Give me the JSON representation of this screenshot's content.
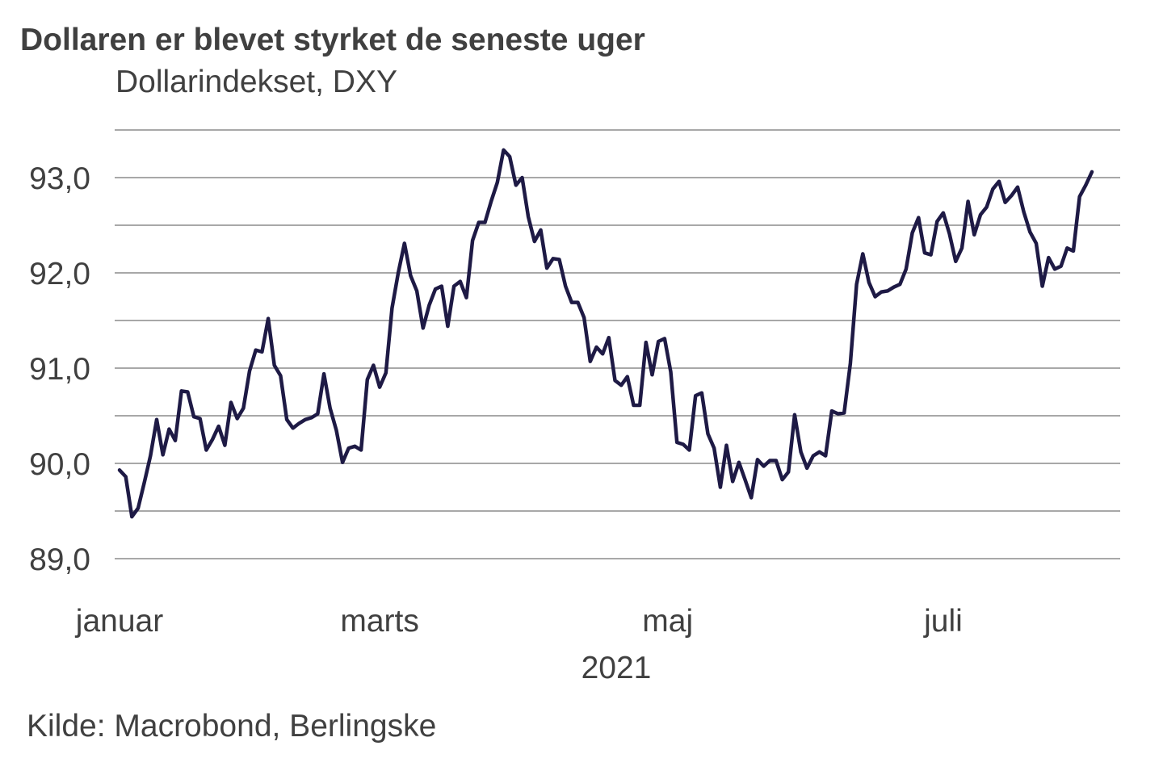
{
  "title": "Dollaren er blevet styrket de seneste uger",
  "subtitle": "Dollarindekset, DXY",
  "source": "Kilde: Macrobond, Berlingske",
  "colors": {
    "line": "#1e1a45",
    "grid": "#8c8c8c",
    "text": "#404040"
  },
  "chart_data": {
    "type": "line",
    "title": "Dollaren er blevet styrket de seneste uger",
    "subtitle": "Dollarindekset, DXY",
    "xlabel": "2021",
    "ylabel": "",
    "ylim": [
      89.0,
      93.5
    ],
    "grid": true,
    "y_ticks": [
      {
        "value": 89.0,
        "label": "89,0"
      },
      {
        "value": 90.0,
        "label": "90,0"
      },
      {
        "value": 91.0,
        "label": "91,0"
      },
      {
        "value": 92.0,
        "label": "92,0"
      },
      {
        "value": 93.0,
        "label": "93,0"
      }
    ],
    "gridlines": [
      89.0,
      89.5,
      90.0,
      90.5,
      91.0,
      91.5,
      92.0,
      92.5,
      93.0,
      93.5
    ],
    "x_ticks": [
      {
        "label": "januar",
        "index": 0
      },
      {
        "label": "marts",
        "index": 42
      },
      {
        "label": "maj",
        "index": 88.5
      },
      {
        "label": "juli",
        "index": 133
      }
    ],
    "year_label": "2021",
    "series": [
      {
        "name": "DXY",
        "values": [
          89.93,
          89.86,
          89.44,
          89.53,
          89.8,
          90.08,
          90.46,
          90.09,
          90.36,
          90.24,
          90.76,
          90.75,
          90.49,
          90.47,
          90.14,
          90.25,
          90.39,
          90.19,
          90.64,
          90.47,
          90.58,
          90.97,
          91.19,
          91.17,
          91.52,
          91.03,
          90.92,
          90.46,
          90.37,
          90.42,
          90.46,
          90.48,
          90.52,
          90.94,
          90.58,
          90.35,
          90.01,
          90.16,
          90.18,
          90.14,
          90.88,
          91.03,
          90.8,
          90.95,
          91.63,
          92.0,
          92.31,
          91.97,
          91.81,
          91.42,
          91.66,
          91.83,
          91.86,
          91.44,
          91.86,
          91.91,
          91.74,
          92.34,
          92.53,
          92.53,
          92.75,
          92.95,
          93.29,
          93.22,
          92.92,
          93.0,
          92.59,
          92.33,
          92.45,
          92.05,
          92.15,
          92.14,
          91.86,
          91.69,
          91.69,
          91.53,
          91.07,
          91.22,
          91.15,
          91.32,
          90.87,
          90.82,
          90.91,
          90.61,
          90.61,
          91.27,
          90.93,
          91.28,
          91.31,
          90.96,
          90.22,
          90.2,
          90.14,
          90.71,
          90.74,
          90.31,
          90.16,
          89.75,
          90.19,
          89.81,
          90.01,
          89.83,
          89.64,
          90.04,
          89.97,
          90.03,
          90.03,
          89.83,
          89.91,
          90.51,
          90.12,
          89.95,
          90.08,
          90.12,
          90.08,
          90.55,
          90.52,
          90.53,
          91.05,
          91.88,
          92.2,
          91.9,
          91.75,
          91.8,
          91.81,
          91.85,
          91.88,
          92.04,
          92.42,
          92.58,
          92.21,
          92.19,
          92.54,
          92.63,
          92.41,
          92.12,
          92.26,
          92.75,
          92.4,
          92.61,
          92.69,
          92.88,
          92.96,
          92.74,
          92.81,
          92.9,
          92.64,
          92.43,
          92.31,
          91.86,
          92.16,
          92.04,
          92.07,
          92.26,
          92.23,
          92.8,
          92.92,
          93.06
        ]
      }
    ]
  }
}
